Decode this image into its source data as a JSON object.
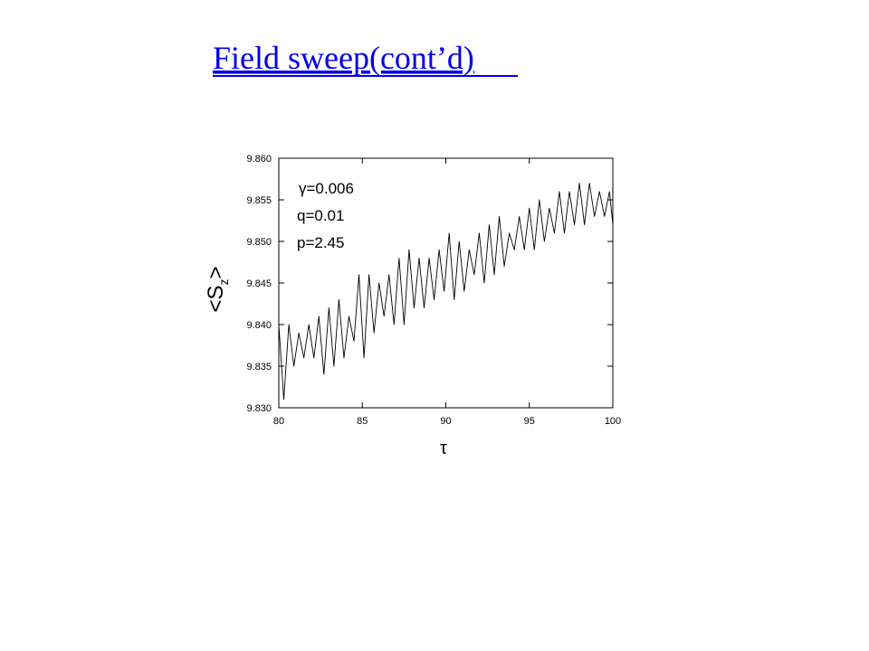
{
  "page_title": "Field sweep(cont’d)",
  "chart_data": {
    "type": "line",
    "x_label": "τ",
    "y_label": {
      "main": "<S",
      "sub": "z",
      "end": ">"
    },
    "annotations": [
      "γ=0.006",
      "q=0.01",
      "p=2.45"
    ],
    "x": [
      80,
      80.3,
      80.6,
      80.9,
      81.2,
      81.5,
      81.8,
      82.1,
      82.4,
      82.7,
      83.0,
      83.3,
      83.6,
      83.9,
      84.2,
      84.5,
      84.8,
      85.1,
      85.4,
      85.7,
      86.0,
      86.3,
      86.6,
      86.9,
      87.2,
      87.5,
      87.8,
      88.1,
      88.4,
      88.7,
      89.0,
      89.3,
      89.6,
      89.9,
      90.2,
      90.5,
      90.8,
      91.1,
      91.4,
      91.7,
      92.0,
      92.3,
      92.6,
      92.9,
      93.2,
      93.5,
      93.8,
      94.1,
      94.4,
      94.7,
      95.0,
      95.3,
      95.6,
      95.9,
      96.2,
      96.5,
      96.8,
      97.1,
      97.4,
      97.7,
      98.0,
      98.3,
      98.6,
      98.9,
      99.2,
      99.5,
      99.8,
      100
    ],
    "series": [
      {
        "color": "#000000",
        "values": [
          9.84,
          9.831,
          9.84,
          9.835,
          9.839,
          9.836,
          9.84,
          9.836,
          9.841,
          9.834,
          9.842,
          9.835,
          9.843,
          9.836,
          9.841,
          9.838,
          9.846,
          9.836,
          9.846,
          9.839,
          9.845,
          9.841,
          9.846,
          9.84,
          9.848,
          9.84,
          9.849,
          9.842,
          9.848,
          9.842,
          9.848,
          9.843,
          9.849,
          9.844,
          9.851,
          9.843,
          9.85,
          9.844,
          9.849,
          9.846,
          9.851,
          9.845,
          9.852,
          9.846,
          9.853,
          9.847,
          9.851,
          9.849,
          9.853,
          9.849,
          9.854,
          9.849,
          9.855,
          9.85,
          9.854,
          9.851,
          9.856,
          9.851,
          9.856,
          9.852,
          9.857,
          9.852,
          9.857,
          9.853,
          9.856,
          9.853,
          9.856,
          9.852
        ]
      }
    ],
    "xlim": [
      80,
      100
    ],
    "xticks": [
      80,
      85,
      90,
      95,
      100
    ],
    "ylim": [
      9.83,
      9.86
    ],
    "yticks": [
      {
        "value": 9.83,
        "label": "9.830"
      },
      {
        "value": 9.835,
        "label": "9.835"
      },
      {
        "value": 9.84,
        "label": "9.840"
      },
      {
        "value": 9.845,
        "label": "9.845"
      },
      {
        "value": 9.85,
        "label": "9.850"
      },
      {
        "value": 9.855,
        "label": "9.855"
      },
      {
        "value": 9.86,
        "label": "9.860"
      }
    ]
  }
}
